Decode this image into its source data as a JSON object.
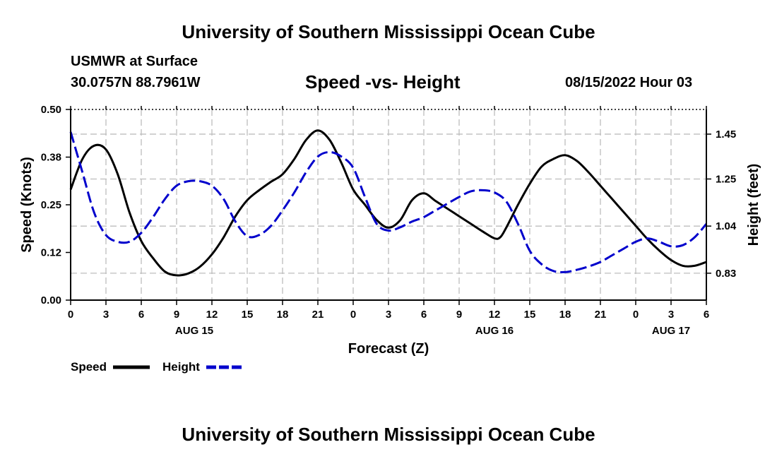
{
  "header": {
    "title": "University of Southern Mississippi Ocean Cube",
    "station": "USMWR at Surface",
    "coords": "30.0757N  88.7961W",
    "datetime": "08/15/2022 Hour 03",
    "footer_title": "University of Southern Mississippi Ocean Cube"
  },
  "chart_data": {
    "type": "line",
    "title": "Speed -vs- Height",
    "xlabel": "Forecast (Z)",
    "ylabel_left": "Speed (Knots)",
    "ylabel_right": "Height (feet)",
    "x_range": [
      0,
      54
    ],
    "y_left_range": [
      0.0,
      0.5
    ],
    "y_right_range": [
      0.71,
      1.56
    ],
    "x_ticks": [
      {
        "x": 0,
        "label": "0"
      },
      {
        "x": 3,
        "label": "3"
      },
      {
        "x": 6,
        "label": "6"
      },
      {
        "x": 9,
        "label": "9"
      },
      {
        "x": 12,
        "label": "12"
      },
      {
        "x": 15,
        "label": "15"
      },
      {
        "x": 18,
        "label": "18"
      },
      {
        "x": 21,
        "label": "21"
      },
      {
        "x": 24,
        "label": "0"
      },
      {
        "x": 27,
        "label": "3"
      },
      {
        "x": 30,
        "label": "6"
      },
      {
        "x": 33,
        "label": "9"
      },
      {
        "x": 36,
        "label": "12"
      },
      {
        "x": 39,
        "label": "15"
      },
      {
        "x": 42,
        "label": "18"
      },
      {
        "x": 45,
        "label": "21"
      },
      {
        "x": 48,
        "label": "0"
      },
      {
        "x": 51,
        "label": "3"
      },
      {
        "x": 54,
        "label": "6"
      }
    ],
    "day_labels": [
      {
        "x": 10.5,
        "label": "AUG 15"
      },
      {
        "x": 36,
        "label": "AUG 16"
      },
      {
        "x": 51,
        "label": "AUG 17"
      }
    ],
    "y_left_ticks": [
      {
        "value": 0.0,
        "label": "0.00"
      },
      {
        "value": 0.125,
        "label": "0.12"
      },
      {
        "value": 0.25,
        "label": "0.25"
      },
      {
        "value": 0.375,
        "label": "0.38"
      },
      {
        "value": 0.5,
        "label": "0.50"
      }
    ],
    "y_right_ticks": [
      {
        "value": 0.83,
        "label": "0.83"
      },
      {
        "value": 1.04,
        "label": "1.04"
      },
      {
        "value": 1.25,
        "label": "1.25"
      },
      {
        "value": 1.45,
        "label": "1.45"
      }
    ],
    "series": [
      {
        "name": "Speed",
        "axis": "left",
        "color": "#000000",
        "dash": "solid",
        "points": [
          [
            0,
            0.29
          ],
          [
            1,
            0.37
          ],
          [
            2,
            0.405
          ],
          [
            3,
            0.395
          ],
          [
            4,
            0.33
          ],
          [
            5,
            0.23
          ],
          [
            6,
            0.155
          ],
          [
            7,
            0.11
          ],
          [
            8,
            0.075
          ],
          [
            9,
            0.065
          ],
          [
            10,
            0.07
          ],
          [
            11,
            0.088
          ],
          [
            12,
            0.12
          ],
          [
            13,
            0.165
          ],
          [
            14,
            0.22
          ],
          [
            15,
            0.262
          ],
          [
            16,
            0.288
          ],
          [
            17,
            0.31
          ],
          [
            18,
            0.33
          ],
          [
            19,
            0.37
          ],
          [
            20,
            0.42
          ],
          [
            21,
            0.445
          ],
          [
            22,
            0.42
          ],
          [
            23,
            0.36
          ],
          [
            24,
            0.29
          ],
          [
            25,
            0.25
          ],
          [
            26,
            0.21
          ],
          [
            27,
            0.19
          ],
          [
            28,
            0.21
          ],
          [
            29,
            0.262
          ],
          [
            30,
            0.28
          ],
          [
            31,
            0.26
          ],
          [
            32,
            0.24
          ],
          [
            33,
            0.22
          ],
          [
            34,
            0.2
          ],
          [
            35,
            0.18
          ],
          [
            36,
            0.162
          ],
          [
            36.5,
            0.165
          ],
          [
            37,
            0.19
          ],
          [
            38,
            0.25
          ],
          [
            39,
            0.305
          ],
          [
            40,
            0.35
          ],
          [
            41,
            0.37
          ],
          [
            42,
            0.38
          ],
          [
            43,
            0.365
          ],
          [
            44,
            0.335
          ],
          [
            45,
            0.3
          ],
          [
            46,
            0.265
          ],
          [
            47,
            0.23
          ],
          [
            48,
            0.195
          ],
          [
            49,
            0.16
          ],
          [
            50,
            0.13
          ],
          [
            51,
            0.105
          ],
          [
            52,
            0.09
          ],
          [
            53,
            0.09
          ],
          [
            54,
            0.1
          ]
        ]
      },
      {
        "name": "Height",
        "axis": "right",
        "color": "#0000cc",
        "dash": "dashed",
        "points": [
          [
            0,
            1.46
          ],
          [
            1,
            1.28
          ],
          [
            2,
            1.1
          ],
          [
            3,
            1.0
          ],
          [
            4,
            0.97
          ],
          [
            5,
            0.97
          ],
          [
            6,
            1.01
          ],
          [
            7,
            1.08
          ],
          [
            8,
            1.16
          ],
          [
            9,
            1.22
          ],
          [
            10,
            1.24
          ],
          [
            11,
            1.24
          ],
          [
            12,
            1.22
          ],
          [
            13,
            1.16
          ],
          [
            14,
            1.06
          ],
          [
            15,
            0.995
          ],
          [
            16,
            1.0
          ],
          [
            17,
            1.04
          ],
          [
            18,
            1.11
          ],
          [
            19,
            1.19
          ],
          [
            20,
            1.28
          ],
          [
            21,
            1.35
          ],
          [
            22,
            1.37
          ],
          [
            23,
            1.35
          ],
          [
            24,
            1.3
          ],
          [
            25,
            1.17
          ],
          [
            26,
            1.05
          ],
          [
            27,
            1.02
          ],
          [
            28,
            1.035
          ],
          [
            29,
            1.06
          ],
          [
            30,
            1.08
          ],
          [
            31,
            1.11
          ],
          [
            32,
            1.14
          ],
          [
            33,
            1.17
          ],
          [
            34,
            1.195
          ],
          [
            35,
            1.2
          ],
          [
            36,
            1.19
          ],
          [
            37,
            1.15
          ],
          [
            38,
            1.05
          ],
          [
            39,
            0.93
          ],
          [
            40,
            0.87
          ],
          [
            41,
            0.84
          ],
          [
            42,
            0.835
          ],
          [
            43,
            0.845
          ],
          [
            44,
            0.86
          ],
          [
            45,
            0.88
          ],
          [
            46,
            0.91
          ],
          [
            47,
            0.94
          ],
          [
            48,
            0.97
          ],
          [
            49,
            0.985
          ],
          [
            50,
            0.97
          ],
          [
            51,
            0.95
          ],
          [
            52,
            0.955
          ],
          [
            53,
            0.99
          ],
          [
            54,
            1.05
          ]
        ]
      }
    ],
    "legend": [
      {
        "label": "Speed",
        "color": "#000000",
        "dash": "solid"
      },
      {
        "label": "Height",
        "color": "#0000cc",
        "dash": "dashed"
      }
    ]
  }
}
